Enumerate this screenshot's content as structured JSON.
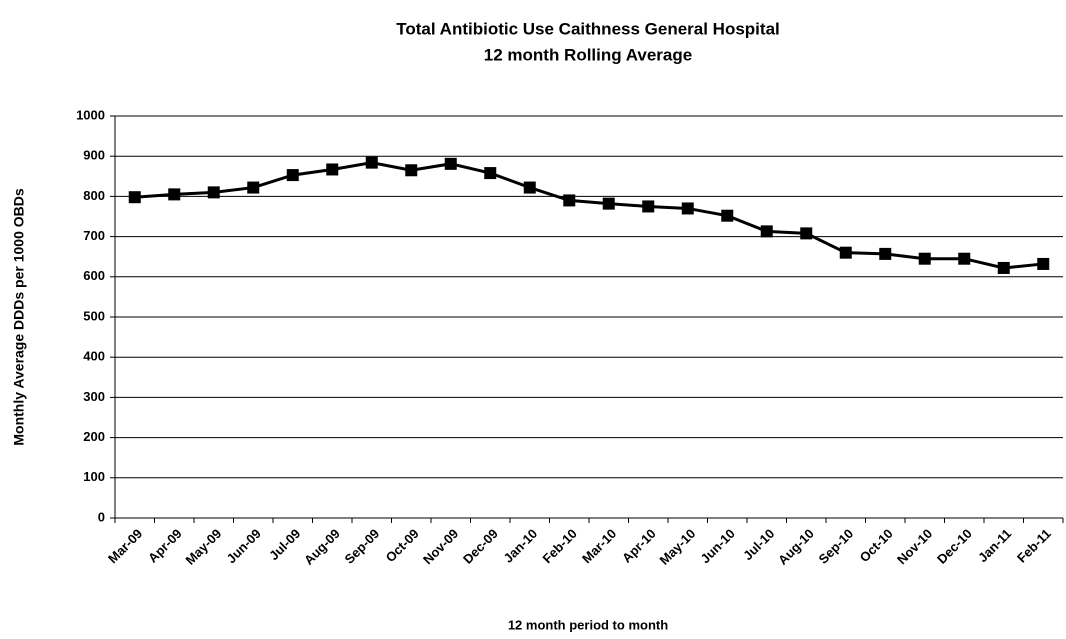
{
  "chart_data": {
    "type": "line",
    "title": "Total Antibiotic Use Caithness General Hospital",
    "subtitle": "12 month Rolling Average",
    "x_label": "12 month period to month",
    "y_label": "Monthly Average DDDs per 1000 OBDs",
    "categories": [
      "Mar-09",
      "Apr-09",
      "May-09",
      "Jun-09",
      "Jul-09",
      "Aug-09",
      "Sep-09",
      "Oct-09",
      "Nov-09",
      "Dec-09",
      "Jan-10",
      "Feb-10",
      "Mar-10",
      "Apr-10",
      "May-10",
      "Jun-10",
      "Jul-10",
      "Aug-10",
      "Sep-10",
      "Oct-10",
      "Nov-10",
      "Dec-10",
      "Jan-11",
      "Feb-11"
    ],
    "values": [
      798,
      805,
      810,
      822,
      853,
      867,
      884,
      865,
      881,
      858,
      822,
      790,
      782,
      775,
      770,
      752,
      713,
      708,
      660,
      657,
      645,
      645,
      622,
      632
    ],
    "color": "#000000",
    "ylim": [
      0,
      1000
    ],
    "yticks": [
      0,
      100,
      200,
      300,
      400,
      500,
      600,
      700,
      800,
      900,
      1000
    ],
    "grid": true
  }
}
